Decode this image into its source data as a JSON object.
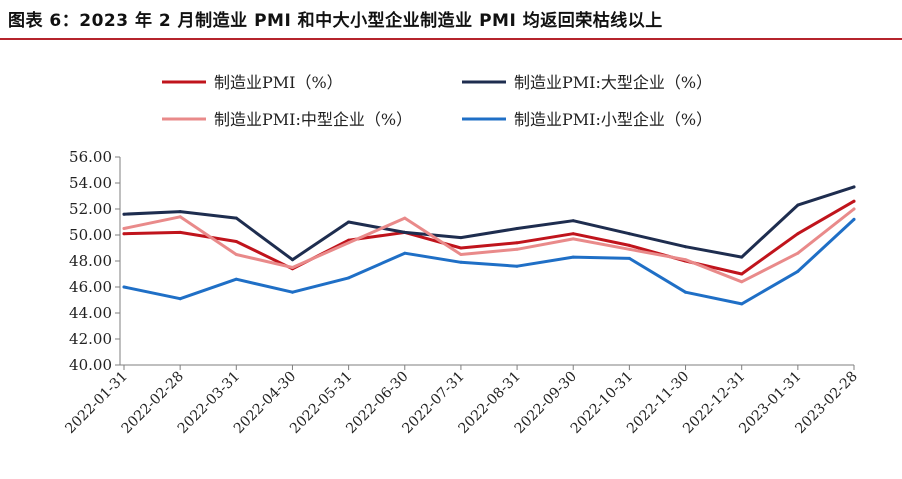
{
  "figure": {
    "title": "图表 6：2023 年 2 月制造业 PMI 和中大小型企业制造业 PMI 均返回荣枯线以上",
    "rule_color": "#b5242c"
  },
  "chart_data": {
    "type": "line",
    "title": "图表 6：2023 年 2 月制造业 PMI 和中大小型企业制造业 PMI 均返回荣枯线以上",
    "xlabel": "",
    "ylabel": "",
    "categories": [
      "2022-01-31",
      "2022-02-28",
      "2022-03-31",
      "2022-04-30",
      "2022-05-31",
      "2022-06-30",
      "2022-07-31",
      "2022-08-31",
      "2022-09-30",
      "2022-10-31",
      "2022-11-30",
      "2022-12-31",
      "2023-01-31",
      "2023-02-28"
    ],
    "ylim": [
      40,
      56
    ],
    "yticks": [
      "40.00",
      "42.00",
      "44.00",
      "46.00",
      "48.00",
      "50.00",
      "52.00",
      "54.00",
      "56.00"
    ],
    "grid": false,
    "legend_position": "top",
    "series": [
      {
        "name": "制造业PMI（%）",
        "color": "#c0141c",
        "values": [
          50.1,
          50.2,
          49.5,
          47.4,
          49.6,
          50.2,
          49.0,
          49.4,
          50.1,
          49.2,
          48.0,
          47.0,
          50.1,
          52.6
        ]
      },
      {
        "name": "制造业PMI:大型企业（%）",
        "color": "#1e2d4f",
        "values": [
          51.6,
          51.8,
          51.3,
          48.1,
          51.0,
          50.2,
          49.8,
          50.5,
          51.1,
          50.1,
          49.1,
          48.3,
          52.3,
          53.7
        ]
      },
      {
        "name": "制造业PMI:中型企业（%）",
        "color": "#e98a8a",
        "values": [
          50.5,
          51.4,
          48.5,
          47.5,
          49.4,
          51.3,
          48.5,
          48.9,
          49.7,
          48.9,
          48.1,
          46.4,
          48.6,
          52.0
        ]
      },
      {
        "name": "制造业PMI:小型企业（%）",
        "color": "#1f6fc6",
        "values": [
          46.0,
          45.1,
          46.6,
          45.6,
          46.7,
          48.6,
          47.9,
          47.6,
          48.3,
          48.2,
          45.6,
          44.7,
          47.2,
          51.2
        ]
      }
    ]
  }
}
